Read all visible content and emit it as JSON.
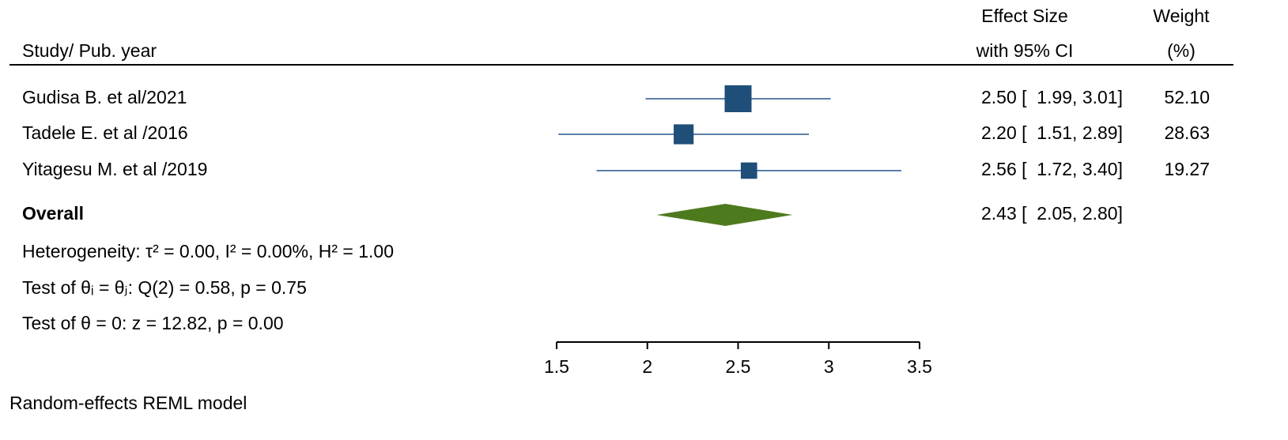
{
  "chart_data": {
    "type": "forest",
    "study_header": "Study/ Pub. year",
    "effect_header": [
      "Effect Size",
      "with 95% CI"
    ],
    "weight_header": [
      "Weight",
      "(%)"
    ],
    "categories": [
      "Gudisa B. et al/2021",
      "Tadele E. et al /2016",
      "Yitagesu M. et al /2019"
    ],
    "values": [
      2.5,
      2.2,
      2.56
    ],
    "lower": [
      1.99,
      1.51,
      1.72
    ],
    "upper": [
      3.01,
      2.89,
      3.4
    ],
    "ci_labels": [
      "2.50 [  1.99, 3.01]",
      "2.20 [  1.51, 2.89]",
      "2.56 [  1.72, 3.40]"
    ],
    "weights": [
      52.1,
      28.63,
      19.27
    ],
    "weight_labels": [
      "52.10",
      "28.63",
      "19.27"
    ],
    "overall": {
      "name": "Overall",
      "value": 2.43,
      "lower": 2.05,
      "upper": 2.8,
      "ci_label": "2.43 [  2.05, 2.80]"
    },
    "notes": [
      "Heterogeneity: τ² = 0.00, I² = 0.00%, H² = 1.00",
      "Test of θᵢ = θⱼ: Q(2) = 0.58, p = 0.75",
      "Test of θ = 0: z = 12.82, p = 0.00"
    ],
    "model_note": "Random-effects REML model",
    "xlim": [
      1.5,
      3.5
    ],
    "xticks": [
      1.5,
      2,
      2.5,
      3,
      3.5
    ],
    "box_color": "#1f4e79",
    "ci_color": "#5a7fa8",
    "diamond_color": "#4e7a1e"
  }
}
